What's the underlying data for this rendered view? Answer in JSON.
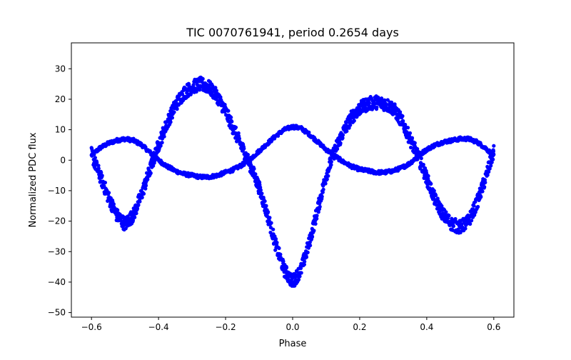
{
  "chart_data": {
    "type": "scatter",
    "title": "TIC 0070761941, period 0.2654 days",
    "xlabel": "Phase",
    "ylabel": "Normalized PDC flux",
    "xlim": [
      -0.66,
      0.66
    ],
    "ylim": [
      -51.5,
      38.5
    ],
    "xticks": [
      -0.6,
      -0.4,
      -0.2,
      0.0,
      0.2,
      0.4,
      0.6
    ],
    "xtick_labels": [
      "−0.6",
      "−0.4",
      "−0.2",
      "0.0",
      "0.2",
      "0.4",
      "0.6"
    ],
    "yticks": [
      -50,
      -40,
      -30,
      -20,
      -10,
      0,
      10,
      20,
      30
    ],
    "ytick_labels": [
      "−50",
      "−40",
      "−30",
      "−20",
      "−10",
      "0",
      "10",
      "20",
      "30"
    ],
    "grid": false,
    "legend": "none",
    "marker_color": "#0000ff",
    "phase_range": [
      -0.6,
      0.6
    ],
    "series": [
      {
        "x": [
          -0.6,
          -0.575,
          -0.55,
          -0.525,
          -0.5,
          -0.475,
          -0.45,
          -0.425,
          -0.4,
          -0.375,
          -0.35,
          -0.325,
          -0.3,
          -0.275,
          -0.25,
          -0.225,
          -0.2,
          -0.175,
          -0.15,
          -0.125,
          -0.1,
          -0.075,
          -0.05,
          -0.025,
          0.0,
          0.025,
          0.05,
          0.075,
          0.1,
          0.125,
          0.15,
          0.175,
          0.2,
          0.225,
          0.25,
          0.275,
          0.3,
          0.325,
          0.35,
          0.375,
          0.4,
          0.425,
          0.45,
          0.475,
          0.5,
          0.525,
          0.55,
          0.575,
          0.6
        ],
        "y": [
          1.5,
          4,
          5.5,
          6.5,
          7,
          6.5,
          5,
          2.5,
          0,
          -2,
          -3.5,
          -4.5,
          -5,
          -5.5,
          -5.5,
          -5,
          -4,
          -3,
          -1.5,
          0.5,
          3,
          5.5,
          8,
          10,
          11,
          10.5,
          8.5,
          6,
          3.5,
          1.5,
          -0.5,
          -2,
          -3,
          -3.5,
          -4,
          -4,
          -3.5,
          -2.5,
          -1,
          1.5,
          3.5,
          5,
          6,
          6.5,
          7,
          7,
          6,
          4,
          1.5
        ],
        "spread": 0.6
      },
      {
        "x": [
          -0.6,
          -0.575,
          -0.55,
          -0.525,
          -0.5,
          -0.475,
          -0.45,
          -0.425,
          -0.4,
          -0.375,
          -0.35,
          -0.325,
          -0.3,
          -0.275,
          -0.25,
          -0.225,
          -0.2,
          -0.175,
          -0.15,
          -0.125,
          -0.1,
          -0.075,
          -0.05,
          -0.025,
          0.0,
          0.025,
          0.05,
          0.075,
          0.1,
          0.125,
          0.15,
          0.175,
          0.2,
          0.225,
          0.25,
          0.275,
          0.3,
          0.325,
          0.35,
          0.375,
          0.4,
          0.425,
          0.45,
          0.475,
          0.5,
          0.525,
          0.55,
          0.575,
          0.6
        ],
        "y": [
          2,
          -5,
          -12,
          -18,
          -21,
          -18,
          -11,
          -3,
          5,
          12,
          18,
          22,
          24,
          25,
          24,
          21,
          16,
          10,
          4,
          -2,
          -9,
          -18,
          -28,
          -36,
          -40,
          -36,
          -27,
          -16,
          -5,
          3,
          9,
          14,
          17,
          18.5,
          19,
          18.5,
          17,
          13,
          7,
          1,
          -6,
          -13,
          -18,
          -21,
          -22,
          -20,
          -14,
          -6,
          3
        ],
        "spread": 2.2
      }
    ]
  }
}
